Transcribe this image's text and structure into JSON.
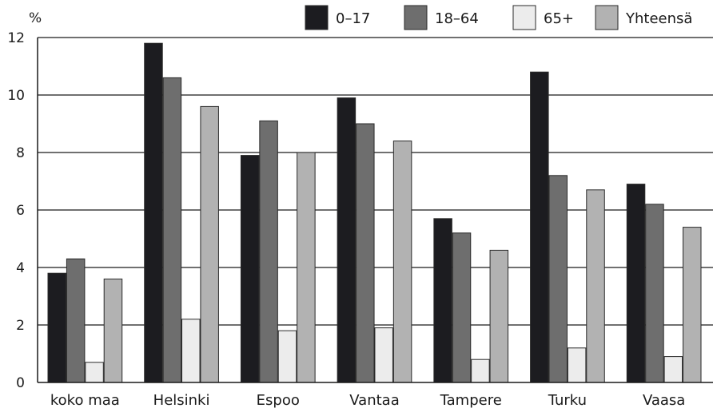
{
  "chart_data": {
    "type": "bar",
    "title": "",
    "xlabel": "",
    "ylabel": "%",
    "ylim": [
      0,
      12
    ],
    "yticks": [
      0,
      2,
      4,
      6,
      8,
      10,
      12
    ],
    "grid": "horizontal",
    "legend_position": "top-right",
    "categories": [
      "koko maa",
      "Helsinki",
      "Espoo",
      "Vantaa",
      "Tampere",
      "Turku",
      "Vaasa"
    ],
    "series": [
      {
        "name": "0–17",
        "color": "#1c1c20",
        "values": [
          3.8,
          11.8,
          7.9,
          9.9,
          5.7,
          10.8,
          6.9
        ]
      },
      {
        "name": "18–64",
        "color": "#6e6e6e",
        "values": [
          4.3,
          10.6,
          9.1,
          9.0,
          5.2,
          7.2,
          6.2
        ]
      },
      {
        "name": "65+",
        "color": "#ececec",
        "values": [
          0.7,
          2.2,
          1.8,
          1.9,
          0.8,
          1.2,
          0.9
        ]
      },
      {
        "name": "Yhteensä",
        "color": "#b2b2b2",
        "values": [
          3.6,
          9.6,
          8.0,
          8.4,
          4.6,
          6.7,
          5.4
        ]
      }
    ]
  }
}
